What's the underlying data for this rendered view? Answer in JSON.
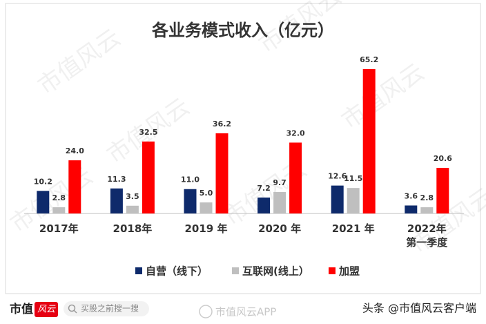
{
  "chart_data": {
    "type": "bar",
    "title": "各业务模式收入（亿元）",
    "categories": [
      "2017年",
      "2018年",
      "2019 年",
      "2020 年",
      "2021 年",
      "2022年\n第一季度"
    ],
    "series": [
      {
        "name": "自营（线下）",
        "color": "#0e2a6b",
        "values": [
          10.2,
          11.3,
          11.0,
          7.2,
          12.6,
          3.6
        ],
        "value_labels": [
          "10.2",
          "11.3",
          "11.0",
          "7.2",
          "12.6",
          "3.6"
        ]
      },
      {
        "name": "互联网(线上）",
        "color": "#bfbfbf",
        "values": [
          2.8,
          3.5,
          5.0,
          9.7,
          11.5,
          2.8
        ],
        "value_labels": [
          "2.8",
          "3.5",
          "5.0",
          "9.7",
          "11.5",
          "2.8"
        ]
      },
      {
        "name": "加盟",
        "color": "#ff0000",
        "values": [
          24.0,
          32.5,
          36.2,
          32.0,
          65.2,
          20.6
        ],
        "value_labels": [
          "24.0",
          "32.5",
          "36.2",
          "32.0",
          "65.2",
          "20.6"
        ]
      }
    ],
    "legend": "bottom"
  },
  "watermark": "市值风云",
  "footer": {
    "logo": "市值",
    "logo_badge": "风云",
    "search": "买股之前搜一搜",
    "app": "市值风云APP",
    "source": "头条 @市值风云客户端"
  }
}
